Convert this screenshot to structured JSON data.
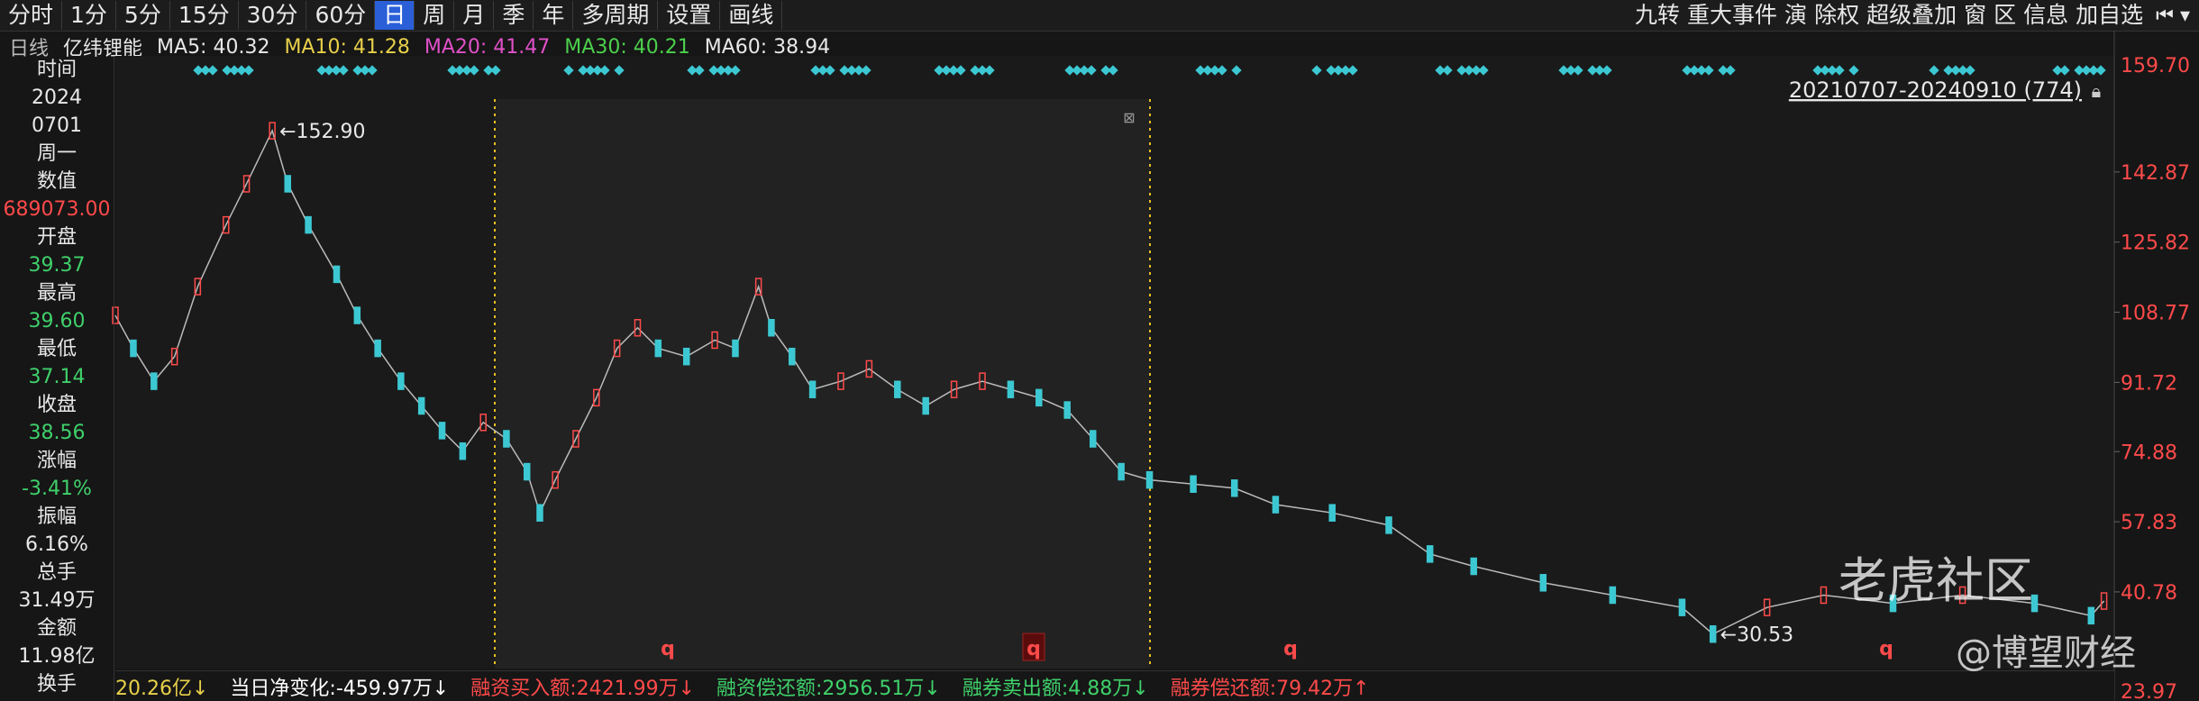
{
  "toolbar": {
    "left": [
      "分时",
      "1分",
      "5分",
      "15分",
      "30分",
      "60分",
      "日",
      "周",
      "月",
      "季",
      "年",
      "多周期",
      "设置",
      "画线"
    ],
    "selected": 6,
    "right": [
      "九转",
      "重大事件",
      "演",
      "除权",
      "超级叠加",
      "窗",
      "区",
      "信息",
      "加自选"
    ]
  },
  "legend": {
    "period": "日线",
    "name": "亿纬锂能",
    "ma": [
      {
        "label": "MA5: 40.32",
        "color": "#e8e8e8"
      },
      {
        "label": "MA10: 41.28",
        "color": "#e8d04a"
      },
      {
        "label": "MA20: 41.47",
        "color": "#e050c8"
      },
      {
        "label": "MA30: 40.21",
        "color": "#4cd04c"
      },
      {
        "label": "MA60: 38.94",
        "color": "#e8e8e8"
      }
    ]
  },
  "info_panel": [
    {
      "text": "时间",
      "color": "#e8e8e8"
    },
    {
      "text": "2024",
      "color": "#e8e8e8"
    },
    {
      "text": "0701",
      "color": "#e8e8e8"
    },
    {
      "text": "周一",
      "color": "#e8e8e8"
    },
    {
      "text": "数值",
      "color": "#e8e8e8"
    },
    {
      "text": "689073.00",
      "color": "#ff4a4a"
    },
    {
      "text": "开盘",
      "color": "#e8e8e8"
    },
    {
      "text": "39.37",
      "color": "#3fd06a"
    },
    {
      "text": "最高",
      "color": "#e8e8e8"
    },
    {
      "text": "39.60",
      "color": "#3fd06a"
    },
    {
      "text": "最低",
      "color": "#e8e8e8"
    },
    {
      "text": "37.14",
      "color": "#3fd06a"
    },
    {
      "text": "收盘",
      "color": "#e8e8e8"
    },
    {
      "text": "38.56",
      "color": "#3fd06a"
    },
    {
      "text": "涨幅",
      "color": "#e8e8e8"
    },
    {
      "text": "-3.41%",
      "color": "#3fd06a"
    },
    {
      "text": "振幅",
      "color": "#e8e8e8"
    },
    {
      "text": "6.16%",
      "color": "#e8e8e8"
    },
    {
      "text": "总手",
      "color": "#e8e8e8"
    },
    {
      "text": "31.49万",
      "color": "#e8e8e8"
    },
    {
      "text": "金额",
      "color": "#e8e8e8"
    },
    {
      "text": "11.98亿",
      "color": "#e8e8e8"
    },
    {
      "text": "换手",
      "color": "#e8e8e8"
    }
  ],
  "chart_data": {
    "type": "line",
    "range_label": "20210707-20240910 (774)",
    "axis_top_label": "159.70",
    "axis_bottom_label": "23.97",
    "x": [
      0,
      7,
      15,
      23,
      32,
      43,
      51,
      61,
      67,
      75,
      86,
      94,
      102,
      111,
      119,
      127,
      135,
      143,
      152,
      160,
      165,
      171,
      179,
      187,
      195,
      203,
      211,
      222,
      233,
      241,
      250,
      255,
      263,
      271,
      282,
      293,
      304,
      315,
      326,
      337,
      348,
      359,
      370,
      380,
      391,
      402,
      419,
      435,
      451,
      473,
      495,
      511,
      528,
      555,
      582,
      609,
      621,
      642,
      664,
      691,
      718,
      746,
      768,
      773
    ],
    "values": [
      108,
      100,
      92,
      98,
      115,
      130,
      140,
      152.9,
      140,
      130,
      118,
      108,
      100,
      92,
      86,
      80,
      75,
      82,
      78,
      70,
      60,
      68,
      78,
      88,
      100,
      105,
      100,
      98,
      102,
      100,
      115,
      105,
      98,
      90,
      92,
      95,
      90,
      86,
      90,
      92,
      90,
      88,
      85,
      78,
      70,
      68,
      67,
      66,
      62,
      60,
      57,
      50,
      47,
      43,
      40,
      37,
      30.53,
      37,
      40,
      38,
      40,
      38,
      35,
      38.56
    ],
    "up_color": "#ff4a4a",
    "down_color": "#3cc8d2",
    "xlim": [
      0,
      777
    ],
    "ylim": [
      22.8,
      171.1
    ],
    "yticks": [
      142.87,
      125.82,
      108.77,
      91.72,
      74.88,
      57.83,
      40.78
    ],
    "annotations": [
      {
        "text": "←152.90",
        "x": 61,
        "value": 152.9
      },
      {
        "text": "←30.53",
        "x": 621,
        "value": 30.53
      }
    ],
    "markers": [
      "q",
      "q",
      "q",
      "q"
    ]
  },
  "bottom_bar": [
    {
      "text": "20.26亿↓",
      "color": "#e8d04a"
    },
    {
      "text": "当日净变化:-459.97万↓",
      "color": "#ffffff"
    },
    {
      "text": "融资买入额:2421.99万↓",
      "color": "#ff4a4a"
    },
    {
      "text": "融资偿还额:2956.51万↓",
      "color": "#3fd06a"
    },
    {
      "text": "融券卖出额:4.88万↓",
      "color": "#3fd06a"
    },
    {
      "text": "融券偿还额:79.42万↑",
      "color": "#ff4a4a"
    }
  ],
  "watermark": [
    "老虎社区",
    "@博望财经"
  ]
}
